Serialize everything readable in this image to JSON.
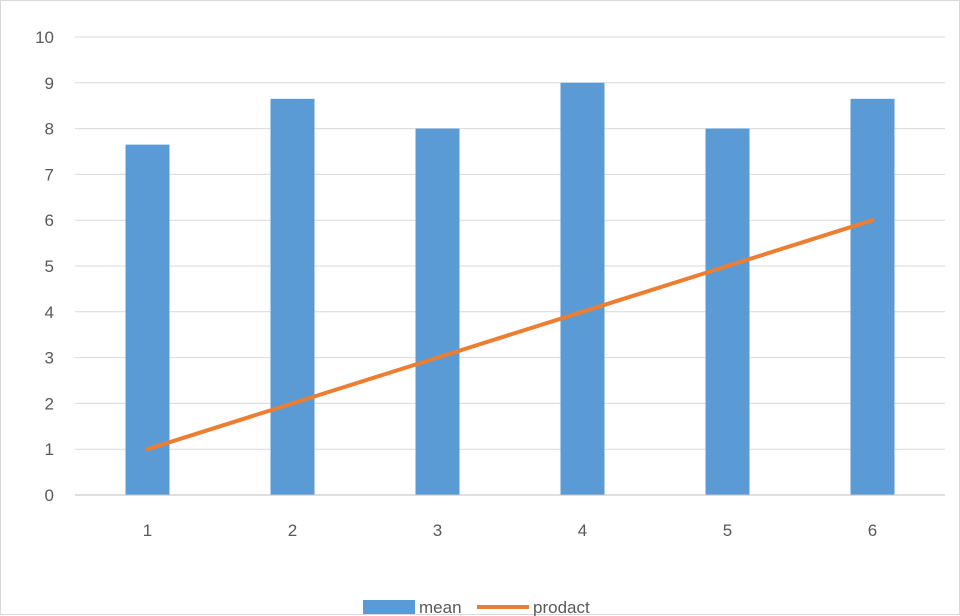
{
  "chart_data": {
    "type": "bar",
    "categories": [
      "1",
      "2",
      "3",
      "4",
      "5",
      "6"
    ],
    "series": [
      {
        "name": "mean",
        "type": "bar",
        "values": [
          7.65,
          8.65,
          8.0,
          9.0,
          8.0,
          8.65
        ]
      },
      {
        "name": "prodact",
        "type": "line",
        "values": [
          1,
          2,
          3,
          4,
          5,
          6
        ]
      }
    ],
    "y_ticks": [
      "0",
      "1",
      "2",
      "3",
      "4",
      "5",
      "6",
      "7",
      "8",
      "9",
      "10"
    ],
    "ylim": [
      0,
      10
    ],
    "grid": true,
    "legend_position": "bottom",
    "colors": {
      "bar": "#5b9bd5",
      "line": "#ed7d31",
      "grid": "#d9d9d9",
      "axis": "#bfbfbf"
    }
  }
}
